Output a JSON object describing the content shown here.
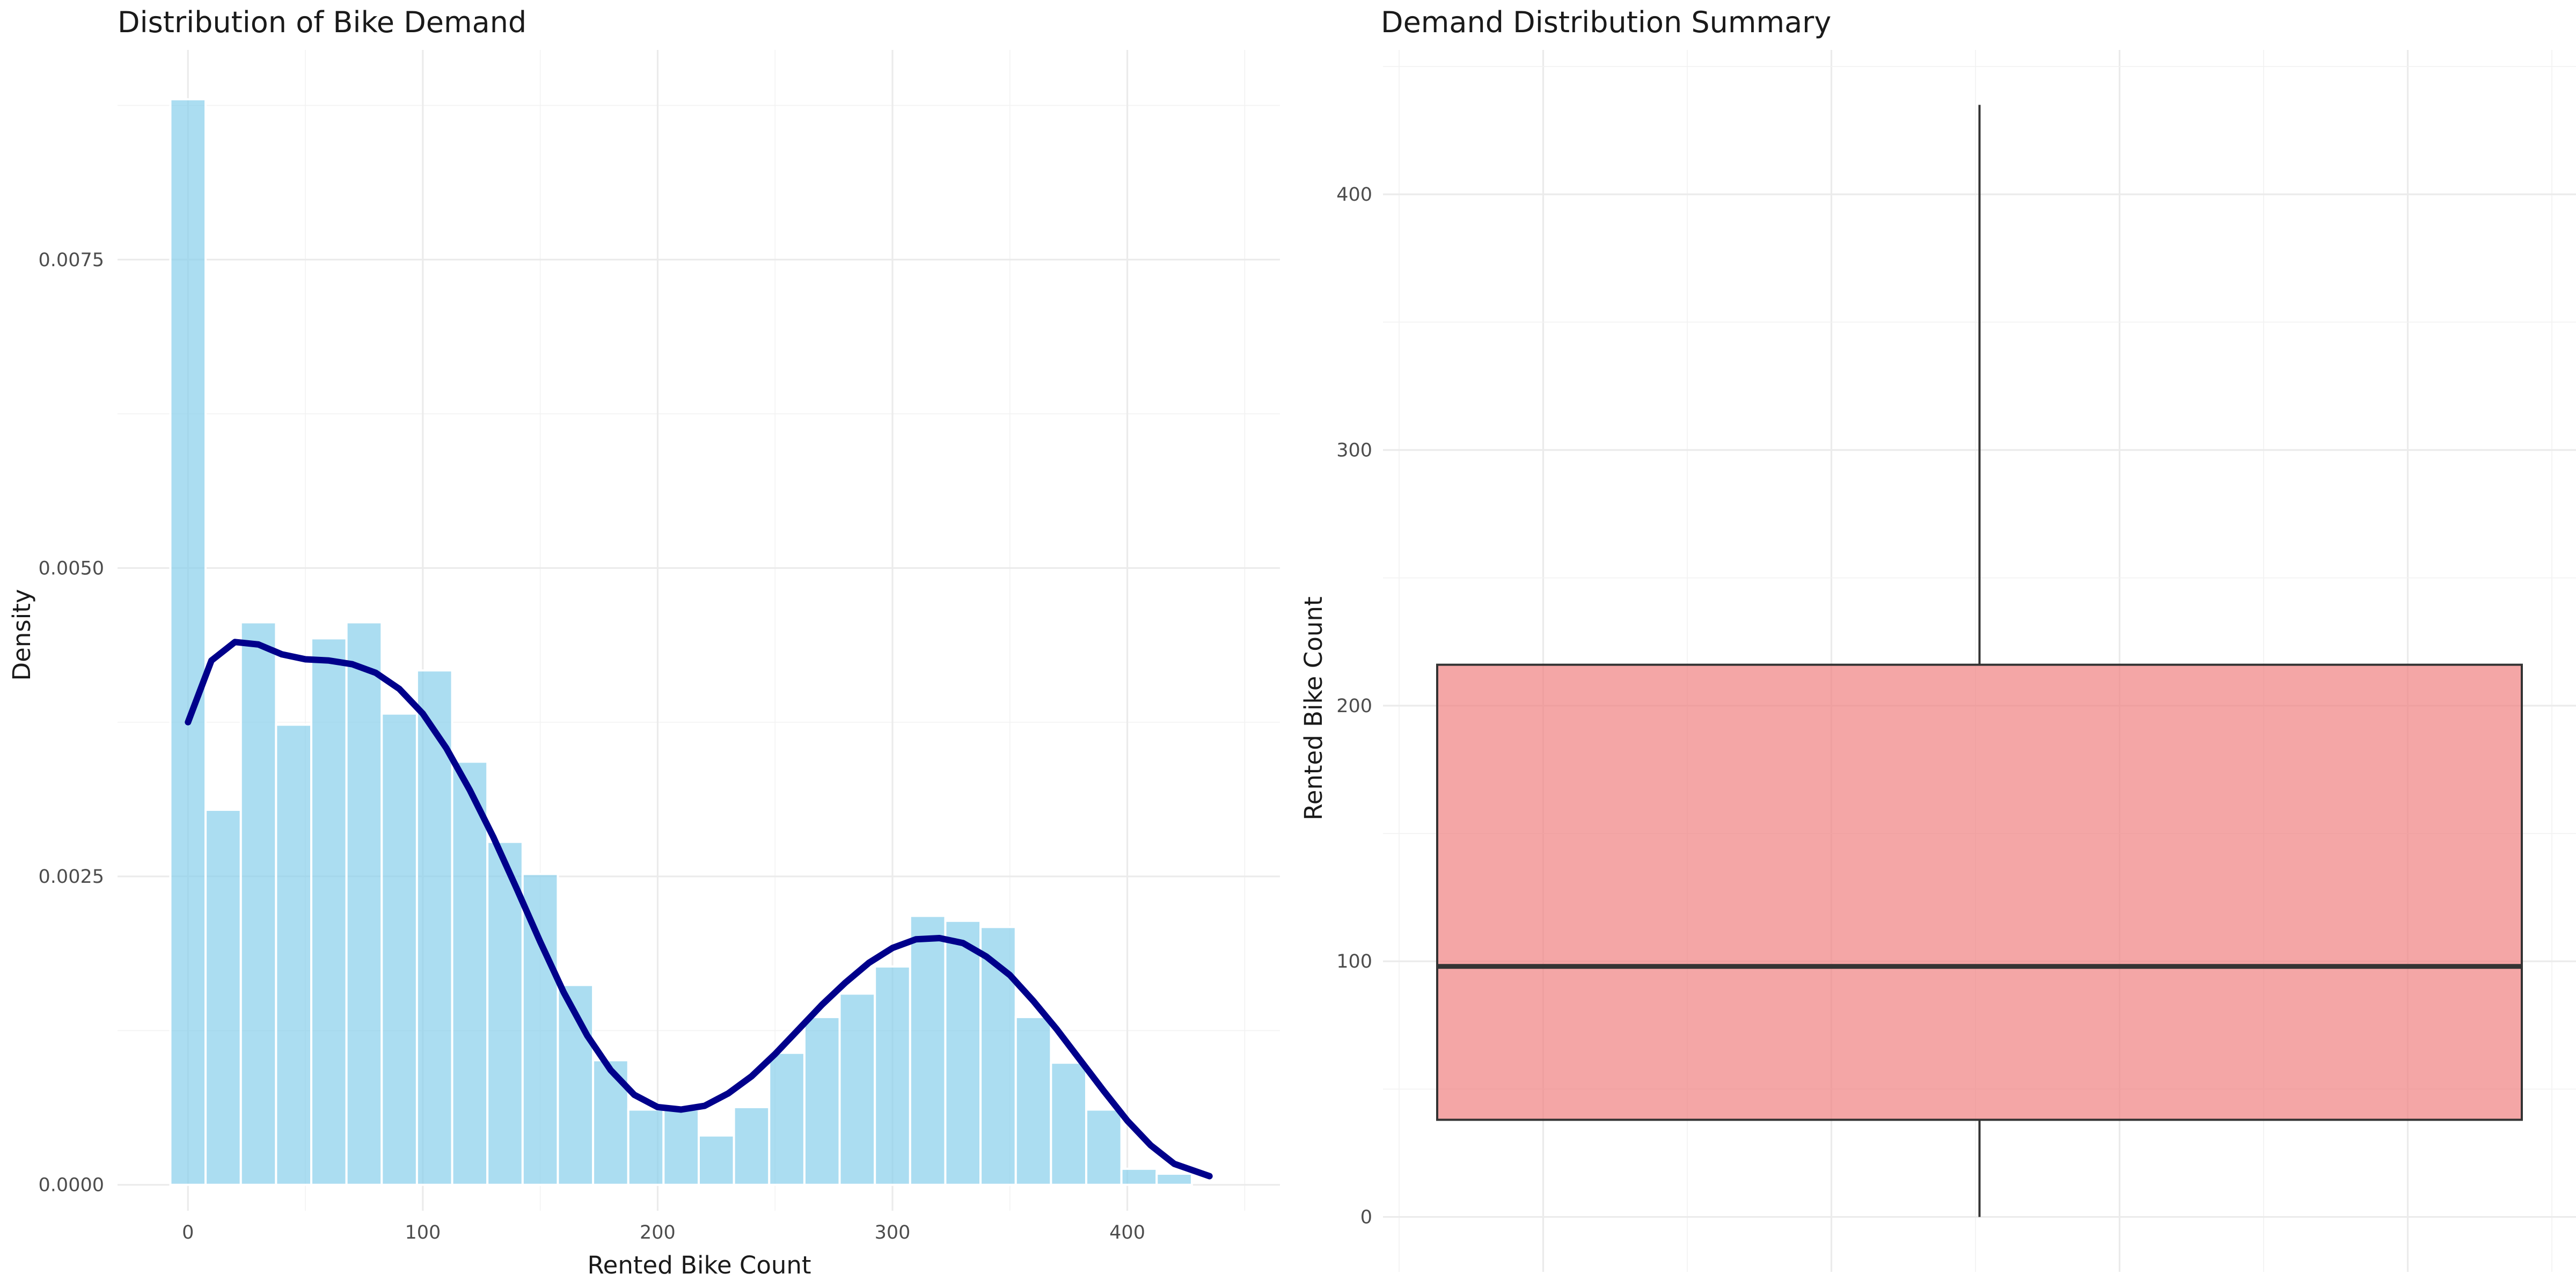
{
  "chart_data": [
    {
      "type": "bar",
      "title": "Distribution of Bike Demand",
      "xlabel": "Rented Bike Count",
      "ylabel": "Density",
      "xlim": [
        -30,
        465
      ],
      "ylim": [
        -0.00021,
        0.0092
      ],
      "x_ticks": [
        0,
        100,
        200,
        300,
        400
      ],
      "y_ticks": [
        0.0,
        0.0025,
        0.005,
        0.0075
      ],
      "x_tick_labels": [
        "0",
        "100",
        "200",
        "300",
        "400"
      ],
      "y_tick_labels": [
        "0.0000",
        "0.0025",
        "0.0050",
        "0.0075"
      ],
      "grid": true,
      "bin_width": 15,
      "bin_centers": [
        0,
        15,
        30,
        45,
        60,
        75,
        90,
        105,
        120,
        135,
        150,
        165,
        180,
        195,
        210,
        225,
        240,
        255,
        270,
        285,
        300,
        315,
        330,
        345,
        360,
        375,
        390,
        405,
        420
      ],
      "values": [
        0.0088,
        0.00304,
        0.00456,
        0.00373,
        0.00443,
        0.00456,
        0.00382,
        0.00417,
        0.00343,
        0.00278,
        0.00252,
        0.00162,
        0.00101,
        0.00061,
        0.00061,
        0.0004,
        0.00063,
        0.00107,
        0.00136,
        0.00155,
        0.00177,
        0.00218,
        0.00214,
        0.00209,
        0.00136,
        0.00099,
        0.00061,
        0.00013,
        9e-05
      ],
      "bar_color": "#87ceeb",
      "density_line": {
        "color": "#00008b",
        "x": [
          0,
          10,
          20,
          30,
          40,
          50,
          60,
          70,
          80,
          90,
          100,
          110,
          120,
          130,
          140,
          150,
          160,
          170,
          180,
          190,
          200,
          210,
          220,
          230,
          240,
          250,
          260,
          270,
          280,
          290,
          300,
          310,
          320,
          330,
          340,
          350,
          360,
          370,
          380,
          390,
          400,
          410,
          420,
          435
        ],
        "y": [
          0.00375,
          0.00425,
          0.0044,
          0.00438,
          0.0043,
          0.00426,
          0.00425,
          0.00422,
          0.00415,
          0.00402,
          0.00382,
          0.00354,
          0.0032,
          0.00282,
          0.0024,
          0.00197,
          0.00156,
          0.00121,
          0.00093,
          0.00073,
          0.00063,
          0.00061,
          0.00064,
          0.00074,
          0.00088,
          0.00106,
          0.00126,
          0.00146,
          0.00164,
          0.0018,
          0.00192,
          0.00199,
          0.002,
          0.00196,
          0.00185,
          0.0017,
          0.00149,
          0.00126,
          0.00101,
          0.00076,
          0.00052,
          0.00032,
          0.00017,
          7e-05
        ]
      }
    },
    {
      "type": "boxplot",
      "title": "Demand Distribution Summary",
      "xlabel": "",
      "ylabel": "Rented Bike Count",
      "ylim": [
        -21.5,
        456.5
      ],
      "y_ticks": [
        0,
        100,
        200,
        300,
        400
      ],
      "y_tick_labels": [
        "0",
        "100",
        "200",
        "300",
        "400"
      ],
      "grid": true,
      "box": {
        "min": 0,
        "q1": 38,
        "median": 98,
        "q3": 216,
        "max": 435,
        "fill_color": "#f08080"
      }
    }
  ]
}
